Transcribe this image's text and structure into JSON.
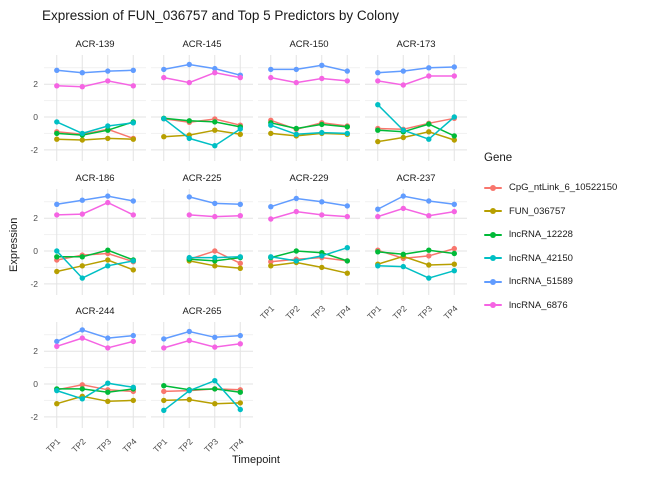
{
  "title": "Expression of FUN_036757 and Top 5 Predictors by Colony",
  "axes": {
    "x_title": "Timepoint",
    "y_title": "Expression",
    "x_ticks": [
      "TP1",
      "TP2",
      "TP3",
      "TP4"
    ],
    "y_ticks": [
      "2",
      "0",
      "-2"
    ]
  },
  "legend": {
    "title": "Gene",
    "entries": [
      {
        "label": "CpG_ntLink_6_10522150",
        "color": "#F8766D"
      },
      {
        "label": "FUN_036757",
        "color": "#B79F00"
      },
      {
        "label": "lncRNA_12228",
        "color": "#00BA38"
      },
      {
        "label": "lncRNA_42150",
        "color": "#00BFC4"
      },
      {
        "label": "lncRNA_51589",
        "color": "#619CFF"
      },
      {
        "label": "lncRNA_6876",
        "color": "#F564E3"
      }
    ]
  },
  "chart_data": {
    "type": "line",
    "title": "Expression of FUN_036757 and Top 5 Predictors by Colony",
    "xlabel": "Timepoint",
    "ylabel": "Expression",
    "x": [
      "TP1",
      "TP2",
      "TP3",
      "TP4"
    ],
    "ylim": [
      -2.68,
      3.78
    ],
    "y_major_gridlines": [
      2,
      0,
      -2
    ],
    "y_minor_gridlines": [
      3,
      1,
      -1
    ],
    "grid": true,
    "legend_position": "right",
    "facets": [
      {
        "label": "ACR-139",
        "series": [
          {
            "name": "CpG_ntLink_6_10522150",
            "values": [
              -0.9,
              -1.05,
              -0.75,
              -1.3
            ]
          },
          {
            "name": "FUN_036757",
            "values": [
              -1.35,
              -1.4,
              -1.3,
              -1.35
            ]
          },
          {
            "name": "lncRNA_12228",
            "values": [
              -1.0,
              -1.1,
              -0.8,
              -0.3
            ]
          },
          {
            "name": "lncRNA_42150",
            "values": [
              -0.3,
              -1.0,
              -0.55,
              -0.35
            ]
          },
          {
            "name": "lncRNA_51589",
            "values": [
              2.85,
              2.7,
              2.8,
              2.85
            ]
          },
          {
            "name": "lncRNA_6876",
            "values": [
              1.9,
              1.85,
              2.2,
              1.9
            ]
          }
        ]
      },
      {
        "label": "ACR-145",
        "series": [
          {
            "name": "CpG_ntLink_6_10522150",
            "values": [
              -0.1,
              -0.32,
              -0.12,
              -0.5
            ]
          },
          {
            "name": "FUN_036757",
            "values": [
              -1.2,
              -1.1,
              -0.8,
              -1.05
            ]
          },
          {
            "name": "lncRNA_12228",
            "values": [
              -0.08,
              -0.23,
              -0.3,
              -0.6
            ]
          },
          {
            "name": "lncRNA_42150",
            "values": [
              -0.1,
              -1.3,
              -1.75,
              -0.73
            ]
          },
          {
            "name": "lncRNA_51589",
            "values": [
              2.9,
              3.2,
              2.95,
              2.55
            ]
          },
          {
            "name": "lncRNA_6876",
            "values": [
              2.4,
              2.1,
              2.7,
              2.4
            ]
          }
        ]
      },
      {
        "label": "ACR-150",
        "series": [
          {
            "name": "CpG_ntLink_6_10522150",
            "values": [
              -0.2,
              -0.75,
              -0.35,
              -0.55
            ]
          },
          {
            "name": "FUN_036757",
            "values": [
              -1.0,
              -1.15,
              -1.0,
              -1.05
            ]
          },
          {
            "name": "lncRNA_12228",
            "values": [
              -0.35,
              -0.7,
              -0.45,
              -0.6
            ]
          },
          {
            "name": "lncRNA_42150",
            "values": [
              -0.5,
              -1.05,
              -0.95,
              -1.0
            ]
          },
          {
            "name": "lncRNA_51589",
            "values": [
              2.9,
              2.9,
              3.15,
              2.8
            ]
          },
          {
            "name": "lncRNA_6876",
            "values": [
              2.4,
              2.1,
              2.35,
              2.2
            ]
          }
        ]
      },
      {
        "label": "ACR-173",
        "series": [
          {
            "name": "CpG_ntLink_6_10522150",
            "values": [
              -0.7,
              -0.75,
              -0.38,
              -0.08
            ]
          },
          {
            "name": "FUN_036757",
            "values": [
              -1.5,
              -1.25,
              -0.9,
              -1.4
            ]
          },
          {
            "name": "lncRNA_12228",
            "values": [
              -0.8,
              -0.9,
              -0.43,
              -1.15
            ]
          },
          {
            "name": "lncRNA_42150",
            "values": [
              0.75,
              -0.8,
              -1.35,
              0.0
            ]
          },
          {
            "name": "lncRNA_51589",
            "values": [
              2.7,
              2.8,
              3.0,
              3.05
            ]
          },
          {
            "name": "lncRNA_6876",
            "values": [
              2.2,
              1.95,
              2.5,
              2.5
            ]
          }
        ]
      },
      {
        "label": "ACR-186",
        "series": [
          {
            "name": "CpG_ntLink_6_10522150",
            "values": [
              -0.55,
              -0.25,
              -0.15,
              -0.65
            ]
          },
          {
            "name": "FUN_036757",
            "values": [
              -1.25,
              -0.9,
              -0.55,
              -1.15
            ]
          },
          {
            "name": "lncRNA_12228",
            "values": [
              -0.35,
              -0.35,
              0.05,
              -0.55
            ]
          },
          {
            "name": "lncRNA_42150",
            "values": [
              0.0,
              -1.65,
              -0.9,
              -0.6
            ]
          },
          {
            "name": "lncRNA_51589",
            "values": [
              2.85,
              3.1,
              3.35,
              3.05
            ]
          },
          {
            "name": "lncRNA_6876",
            "values": [
              2.2,
              2.25,
              2.95,
              2.2
            ]
          }
        ]
      },
      {
        "label": "ACR-225",
        "series": [
          {
            "name": "CpG_ntLink_6_10522150",
            "values": [
              null,
              -0.5,
              0.0,
              -0.75
            ]
          },
          {
            "name": "FUN_036757",
            "values": [
              null,
              -0.6,
              -0.9,
              -1.05
            ]
          },
          {
            "name": "lncRNA_12228",
            "values": [
              null,
              -0.5,
              -0.6,
              -0.4
            ]
          },
          {
            "name": "lncRNA_42150",
            "values": [
              null,
              -0.4,
              -0.4,
              -0.35
            ]
          },
          {
            "name": "lncRNA_51589",
            "values": [
              null,
              3.3,
              2.9,
              2.85
            ]
          },
          {
            "name": "lncRNA_6876",
            "values": [
              null,
              2.2,
              2.1,
              2.15
            ]
          }
        ]
      },
      {
        "label": "ACR-229",
        "series": [
          {
            "name": "CpG_ntLink_6_10522150",
            "values": [
              -0.65,
              -0.5,
              -0.4,
              -0.6
            ]
          },
          {
            "name": "FUN_036757",
            "values": [
              -0.9,
              -0.7,
              -1.0,
              -1.35
            ]
          },
          {
            "name": "lncRNA_12228",
            "values": [
              -0.4,
              0.0,
              -0.1,
              -0.6
            ]
          },
          {
            "name": "lncRNA_42150",
            "values": [
              -0.35,
              -0.6,
              -0.3,
              0.2
            ]
          },
          {
            "name": "lncRNA_51589",
            "values": [
              2.7,
              3.2,
              3.0,
              2.75
            ]
          },
          {
            "name": "lncRNA_6876",
            "values": [
              1.95,
              2.4,
              2.2,
              2.1
            ]
          }
        ]
      },
      {
        "label": "ACR-237",
        "series": [
          {
            "name": "CpG_ntLink_6_10522150",
            "values": [
              0.05,
              -0.45,
              -0.3,
              0.15
            ]
          },
          {
            "name": "FUN_036757",
            "values": [
              -0.8,
              -0.33,
              -0.85,
              -0.8
            ]
          },
          {
            "name": "lncRNA_12228",
            "values": [
              -0.05,
              -0.2,
              0.05,
              -0.15
            ]
          },
          {
            "name": "lncRNA_42150",
            "values": [
              -0.9,
              -0.95,
              -1.65,
              -1.2
            ]
          },
          {
            "name": "lncRNA_51589",
            "values": [
              2.55,
              3.35,
              3.05,
              2.85
            ]
          },
          {
            "name": "lncRNA_6876",
            "values": [
              2.1,
              2.6,
              2.15,
              2.4
            ]
          }
        ]
      },
      {
        "label": "ACR-244",
        "series": [
          {
            "name": "CpG_ntLink_6_10522150",
            "values": [
              -0.35,
              -0.05,
              -0.35,
              -0.45
            ]
          },
          {
            "name": "FUN_036757",
            "values": [
              -1.2,
              -0.75,
              -1.05,
              -1.0
            ]
          },
          {
            "name": "lncRNA_12228",
            "values": [
              -0.3,
              -0.3,
              -0.5,
              -0.3
            ]
          },
          {
            "name": "lncRNA_42150",
            "values": [
              -0.4,
              -0.9,
              0.05,
              -0.2
            ]
          },
          {
            "name": "lncRNA_51589",
            "values": [
              2.6,
              3.3,
              2.8,
              2.95
            ]
          },
          {
            "name": "lncRNA_6876",
            "values": [
              2.3,
              2.8,
              2.2,
              2.6
            ]
          }
        ]
      },
      {
        "label": "ACR-265",
        "series": [
          {
            "name": "CpG_ntLink_6_10522150",
            "values": [
              -0.45,
              -0.4,
              -0.3,
              -0.35
            ]
          },
          {
            "name": "FUN_036757",
            "values": [
              -1.0,
              -0.95,
              -1.2,
              -1.15
            ]
          },
          {
            "name": "lncRNA_12228",
            "values": [
              -0.1,
              -0.35,
              -0.3,
              -0.5
            ]
          },
          {
            "name": "lncRNA_42150",
            "values": [
              -1.6,
              -0.4,
              0.2,
              -1.55
            ]
          },
          {
            "name": "lncRNA_51589",
            "values": [
              2.75,
              3.2,
              2.85,
              2.95
            ]
          },
          {
            "name": "lncRNA_6876",
            "values": [
              2.2,
              2.65,
              2.25,
              2.45
            ]
          }
        ]
      }
    ]
  },
  "style": {
    "grid_major_color": "#E3E3E3",
    "grid_minor_color": "#F1F1F1",
    "tick_label_color": "#4d4d4d",
    "text_color": "#1a1a1a",
    "background": "#ffffff"
  }
}
